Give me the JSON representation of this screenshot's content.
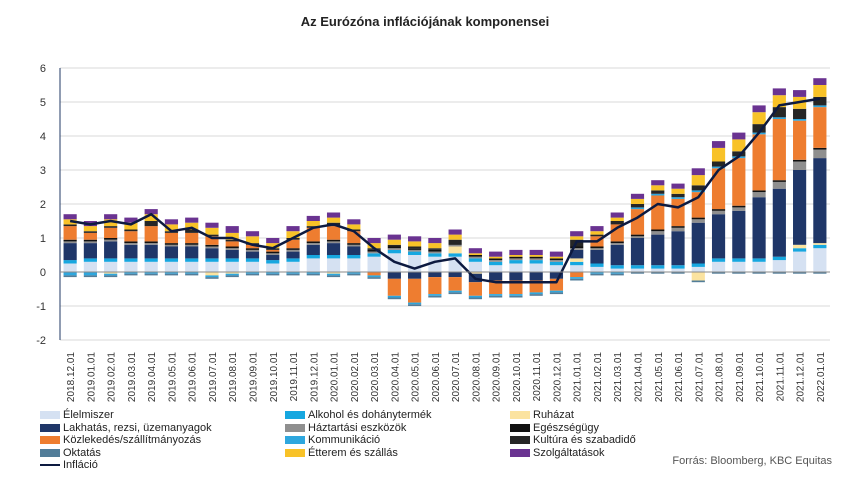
{
  "chart_data": {
    "type": "bar",
    "title": "Az Eurózóna inflációjának komponensei",
    "source": "Forrás: Bloomberg, KBC Equitas",
    "ylim": [
      -2,
      6
    ],
    "yticks": [
      "-2",
      "-1",
      "0",
      "1",
      "2",
      "3",
      "4",
      "5",
      "6"
    ],
    "categories": [
      "2018.12.01",
      "2019.01.01",
      "2019.02.01",
      "2019.03.01",
      "2019.04.01",
      "2019.05.01",
      "2019.06.01",
      "2019.07.01",
      "2019.08.01",
      "2019.09.01",
      "2019.10.01",
      "2019.11.01",
      "2019.12.01",
      "2020.01.01",
      "2020.02.01",
      "2020.03.01",
      "2020.04.01",
      "2020.05.01",
      "2020.06.01",
      "2020.07.01",
      "2020.08.01",
      "2020.09.01",
      "2020.10.01",
      "2020.11.01",
      "2020.12.01",
      "2021.01.01",
      "2021.02.01",
      "2021.03.01",
      "2021.04.01",
      "2021.05.01",
      "2021.06.01",
      "2021.07.01",
      "2021.08.01",
      "2021.09.01",
      "2021.10.01",
      "2021.11.01",
      "2021.12.01",
      "2022.01.01"
    ],
    "series": [
      {
        "name": "Élelmiszer",
        "color": "#d5e1f2",
        "values": [
          0.25,
          0.3,
          0.3,
          0.3,
          0.3,
          0.3,
          0.3,
          0.3,
          0.3,
          0.3,
          0.25,
          0.3,
          0.4,
          0.4,
          0.4,
          0.45,
          0.55,
          0.5,
          0.45,
          0.45,
          0.3,
          0.2,
          0.25,
          0.25,
          0.2,
          0.2,
          0.15,
          0.1,
          0.1,
          0.1,
          0.1,
          0.15,
          0.3,
          0.3,
          0.3,
          0.35,
          0.6,
          0.7
        ]
      },
      {
        "name": "Alkohol és dohánytermék",
        "color": "#16a7e0",
        "values": [
          0.1,
          0.1,
          0.1,
          0.1,
          0.1,
          0.1,
          0.1,
          0.1,
          0.1,
          0.1,
          0.1,
          0.1,
          0.1,
          0.1,
          0.1,
          0.1,
          0.1,
          0.1,
          0.1,
          0.1,
          0.1,
          0.1,
          0.1,
          0.1,
          0.1,
          0.1,
          0.1,
          0.1,
          0.1,
          0.1,
          0.1,
          0.1,
          0.1,
          0.1,
          0.1,
          0.1,
          0.1,
          0.1
        ]
      },
      {
        "name": "Ruházat",
        "color": "#fbe3a0",
        "values": [
          0,
          0,
          -0.05,
          0,
          0,
          0,
          0,
          -0.1,
          -0.05,
          0,
          0,
          0,
          0,
          -0.05,
          0,
          0,
          0,
          0,
          0,
          0.2,
          -0.05,
          0,
          0,
          0,
          0,
          0.1,
          0,
          0,
          0,
          0,
          0,
          -0.25,
          0,
          0,
          0,
          0,
          0.1,
          0.05
        ]
      },
      {
        "name": "Lakhatás, rezsi, üzemanyagok",
        "color": "#1f3668",
        "values": [
          0.5,
          0.45,
          0.5,
          0.4,
          0.4,
          0.35,
          0.35,
          0.3,
          0.25,
          0.2,
          0.15,
          0.2,
          0.3,
          0.35,
          0.25,
          0,
          -0.2,
          -0.2,
          -0.15,
          -0.15,
          -0.25,
          -0.25,
          -0.25,
          -0.25,
          -0.2,
          0.25,
          0.4,
          0.6,
          0.8,
          0.9,
          1.0,
          1.2,
          1.3,
          1.4,
          1.8,
          2.0,
          2.2,
          2.5
        ]
      },
      {
        "name": "Háztartási eszközök",
        "color": "#8f8f8f",
        "values": [
          0.05,
          0.05,
          0.05,
          0.05,
          0.05,
          0.05,
          0.05,
          0.05,
          0.05,
          0.05,
          0.05,
          0.05,
          0.05,
          0.05,
          0.05,
          0.05,
          0.05,
          0.05,
          0.05,
          0.05,
          0.05,
          0.05,
          0.05,
          0.05,
          0.05,
          0.05,
          0.05,
          0.05,
          0.05,
          0.1,
          0.1,
          0.1,
          0.1,
          0.1,
          0.15,
          0.2,
          0.25,
          0.25
        ]
      },
      {
        "name": "Egészségügy",
        "color": "#111111",
        "values": [
          0.05,
          0.05,
          0.05,
          0.05,
          0.05,
          0.05,
          0.05,
          0.05,
          0.05,
          0.05,
          0.05,
          0.05,
          0.05,
          0.05,
          0.05,
          0.05,
          0.05,
          0.05,
          0.05,
          0.05,
          0.05,
          0.05,
          0.05,
          0.05,
          0.05,
          0.05,
          0.05,
          0.05,
          0.05,
          0.05,
          0.05,
          0.05,
          0.05,
          0.05,
          0.05,
          0.05,
          0.05,
          0.05
        ]
      },
      {
        "name": "Közlekedés/szállítmányozás",
        "color": "#ee7d30",
        "values": [
          0.4,
          0.2,
          0.3,
          0.3,
          0.45,
          0.3,
          0.3,
          0.25,
          0.15,
          0.1,
          0.05,
          0.25,
          0.4,
          0.4,
          0.35,
          -0.1,
          -0.5,
          -0.7,
          -0.5,
          -0.4,
          -0.4,
          -0.4,
          -0.4,
          -0.35,
          -0.35,
          -0.15,
          0.3,
          0.5,
          0.75,
          1.0,
          0.8,
          0.75,
          1.2,
          1.4,
          1.65,
          1.8,
          1.15,
          1.2
        ]
      },
      {
        "name": "Kommunikáció",
        "color": "#2ea7de",
        "values": [
          -0.1,
          -0.1,
          -0.05,
          -0.05,
          -0.05,
          -0.05,
          -0.05,
          -0.05,
          -0.05,
          -0.05,
          -0.05,
          -0.05,
          -0.05,
          -0.05,
          -0.05,
          -0.05,
          -0.05,
          -0.05,
          -0.05,
          -0.05,
          -0.05,
          -0.05,
          -0.05,
          -0.05,
          -0.05,
          -0.05,
          -0.05,
          -0.05,
          0.05,
          0.05,
          0.05,
          0.05,
          0.05,
          0.05,
          0.05,
          0.05,
          0.05,
          0.05
        ]
      },
      {
        "name": "Kultúra és szabadidő",
        "color": "#262626",
        "values": [
          0.05,
          0.05,
          0.05,
          0.05,
          0.15,
          0.05,
          0.1,
          0.05,
          0.05,
          0.05,
          0.05,
          0.05,
          0.05,
          0.1,
          0.05,
          0.05,
          0.05,
          0.05,
          0.05,
          0.1,
          0,
          0,
          0,
          0,
          0,
          0.2,
          0.05,
          0.1,
          0.1,
          0.1,
          0.1,
          0.15,
          0.15,
          0.15,
          0.25,
          0.3,
          0.3,
          0.25
        ]
      },
      {
        "name": "Oktatás",
        "color": "#527d99",
        "values": [
          -0.05,
          -0.05,
          -0.05,
          -0.05,
          -0.05,
          -0.05,
          -0.05,
          -0.05,
          -0.05,
          -0.05,
          -0.05,
          -0.05,
          -0.05,
          -0.05,
          -0.05,
          -0.05,
          -0.05,
          -0.05,
          -0.05,
          -0.05,
          -0.05,
          -0.05,
          -0.05,
          -0.05,
          -0.05,
          -0.05,
          -0.05,
          -0.05,
          -0.05,
          -0.05,
          -0.05,
          -0.05,
          -0.05,
          -0.05,
          -0.05,
          -0.05,
          -0.05,
          -0.05
        ]
      },
      {
        "name": "Étterem és szállás",
        "color": "#f8c228",
        "values": [
          0.15,
          0.15,
          0.2,
          0.2,
          0.2,
          0.2,
          0.2,
          0.2,
          0.2,
          0.2,
          0.15,
          0.2,
          0.15,
          0.15,
          0.15,
          0.15,
          0.15,
          0.15,
          0.15,
          0.15,
          0.05,
          0.05,
          0.05,
          0.05,
          0.05,
          0.1,
          0.1,
          0.1,
          0.15,
          0.15,
          0.15,
          0.3,
          0.4,
          0.35,
          0.35,
          0.35,
          0.35,
          0.35
        ]
      },
      {
        "name": "Szolgáltatások",
        "color": "#6a3391",
        "values": [
          0.15,
          0.15,
          0.15,
          0.15,
          0.15,
          0.15,
          0.15,
          0.15,
          0.2,
          0.15,
          0.15,
          0.15,
          0.15,
          0.15,
          0.15,
          0.15,
          0.15,
          0.15,
          0.15,
          0.15,
          0.15,
          0.15,
          0.15,
          0.15,
          0.15,
          0.15,
          0.15,
          0.15,
          0.15,
          0.15,
          0.15,
          0.2,
          0.2,
          0.2,
          0.2,
          0.2,
          0.2,
          0.2
        ]
      }
    ],
    "line": {
      "name": "Infláció",
      "color": "#0d1a40",
      "values": [
        1.5,
        1.4,
        1.5,
        1.4,
        1.7,
        1.2,
        1.3,
        1.0,
        1.0,
        0.8,
        0.7,
        1.0,
        1.3,
        1.4,
        1.2,
        0.7,
        0.3,
        0.1,
        0.3,
        0.4,
        -0.2,
        -0.3,
        -0.3,
        -0.3,
        -0.3,
        0.9,
        0.9,
        1.3,
        1.6,
        2.0,
        1.9,
        2.2,
        3.0,
        3.4,
        4.1,
        4.9,
        5.0,
        5.1
      ]
    }
  }
}
